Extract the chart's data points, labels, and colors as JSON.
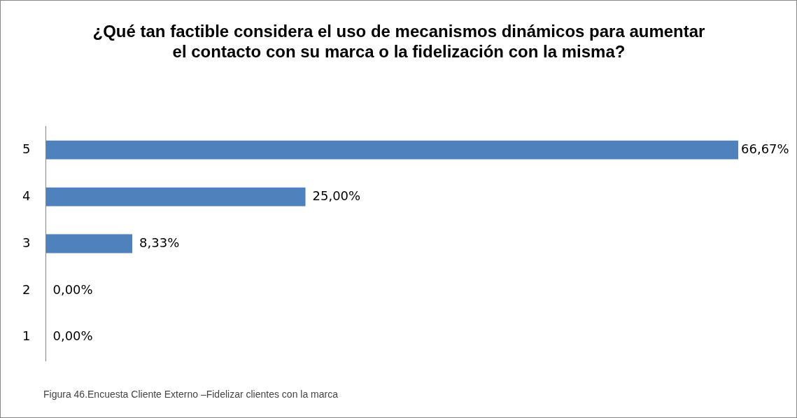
{
  "chart_data": {
    "type": "bar",
    "orientation": "horizontal",
    "title": "¿Qué tan factible considera el uso de mecanismos dinámicos para aumentar el contacto con su marca o la fidelización con la misma?",
    "categories": [
      "5",
      "4",
      "3",
      "2",
      "1"
    ],
    "values": [
      66.67,
      25,
      8.33,
      0,
      0
    ],
    "value_labels": [
      "66,67%",
      "25,00%",
      "8,33%",
      "0,00%",
      "0,00%"
    ],
    "color": "#4f81bd",
    "grid": false,
    "legend": false,
    "tick_labels": "y",
    "annotations": [
      "Figura 46.Encuesta Cliente Externo –Fidelizar clientes con la marca"
    ]
  }
}
